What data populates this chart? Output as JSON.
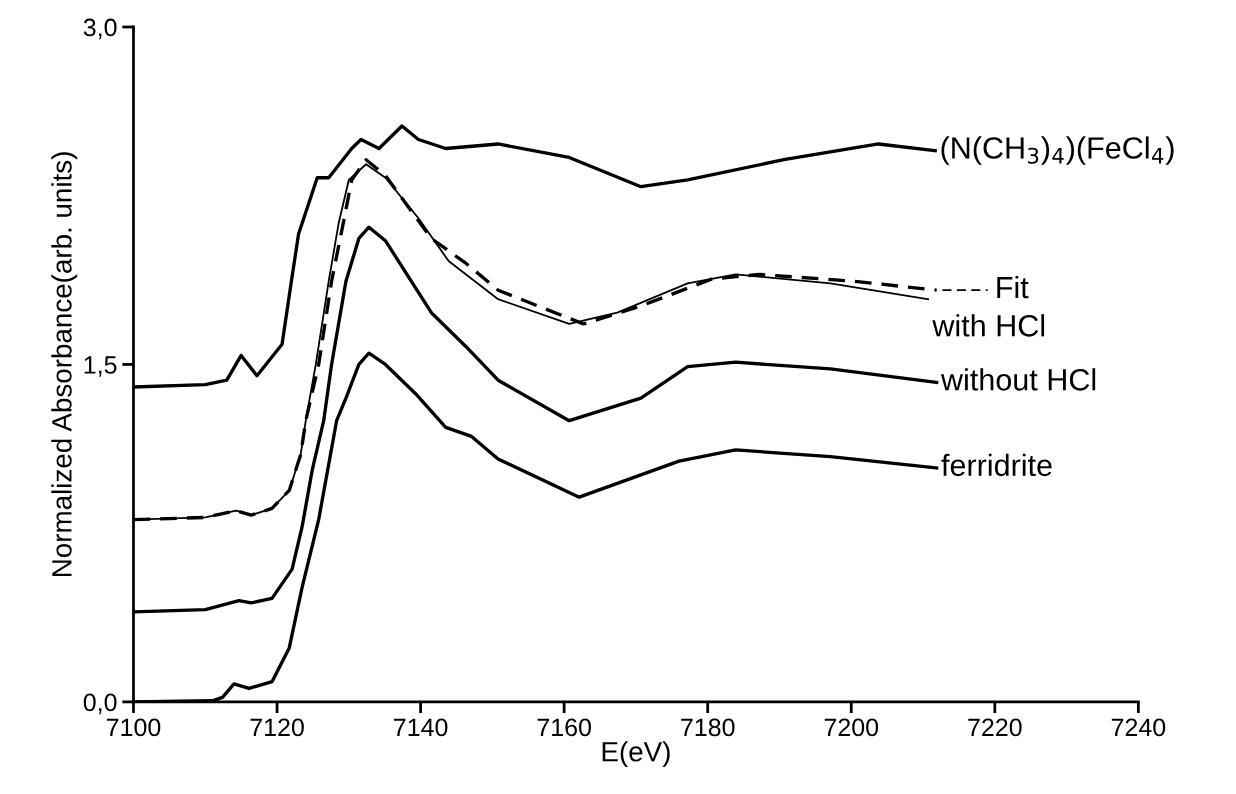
{
  "chart_data": {
    "type": "line",
    "xlabel": "E(eV)",
    "ylabel": "Normalized Absorbance(arb. units)",
    "xlim": [
      7100,
      7240
    ],
    "ylim": [
      0,
      3
    ],
    "xticks": [
      7100,
      7120,
      7140,
      7160,
      7180,
      7200,
      7220,
      7240
    ],
    "yticks": [
      {
        "value": 0,
        "label": "0,0"
      },
      {
        "value": 1.5,
        "label": "1,5"
      },
      {
        "value": 3,
        "label": "3,0"
      }
    ],
    "grid": false,
    "legend": "right",
    "marker": "none",
    "series": [
      {
        "name": "(N(CH$_{3}$)$_{4}$)(FeCl$_{4}$)",
        "color": "#000000",
        "line_style": "solid",
        "x": [
          7100,
          7110,
          7113,
          7115,
          7117.2,
          7120.7,
          7122,
          7123,
          7125.6,
          7127.2,
          7130.4,
          7131.7,
          7134.2,
          7137.4,
          7139.7,
          7143.5,
          7150.8,
          7160.7,
          7170.7,
          7177.2,
          7190.6,
          7203.8,
          7211.7
        ],
        "values": [
          1.4,
          1.41,
          1.43,
          1.54,
          1.45,
          1.59,
          1.87,
          2.08,
          2.33,
          2.33,
          2.46,
          2.5,
          2.46,
          2.56,
          2.5,
          2.46,
          2.48,
          2.42,
          2.29,
          2.32,
          2.41,
          2.48,
          2.45
        ]
      },
      {
        "name": "with HCl",
        "color": "#000000",
        "line_style": "solid",
        "x": [
          7100,
          7110,
          7114.3,
          7116.4,
          7119.3,
          7121.7,
          7123.3,
          7124,
          7125.4,
          7127.2,
          7128.6,
          7130,
          7132.4,
          7135.1,
          7139.7,
          7143.9,
          7150.8,
          7160.7,
          7167.4,
          7177.2,
          7183.9,
          7197.1,
          7210.7
        ],
        "values": [
          0.81,
          0.82,
          0.85,
          0.83,
          0.86,
          0.94,
          1.1,
          1.25,
          1.5,
          1.87,
          2.13,
          2.32,
          2.39,
          2.33,
          2.15,
          1.96,
          1.79,
          1.68,
          1.73,
          1.86,
          1.9,
          1.86,
          1.79
        ]
      },
      {
        "name": "Fit",
        "color": "#000000",
        "line_style": "dashed",
        "x": [
          7100,
          7110,
          7114.3,
          7116.4,
          7119.3,
          7121.7,
          7123.3,
          7124,
          7125.8,
          7127.6,
          7129.3,
          7130.4,
          7132.4,
          7135.1,
          7141.5,
          7146.3,
          7150.8,
          7162.7,
          7170.7,
          7180.6,
          7187.2,
          7200.4,
          7211.9
        ],
        "values": [
          0.81,
          0.82,
          0.85,
          0.83,
          0.86,
          0.94,
          1.1,
          1.25,
          1.5,
          1.87,
          2.14,
          2.32,
          2.41,
          2.34,
          2.06,
          1.95,
          1.83,
          1.68,
          1.76,
          1.88,
          1.9,
          1.87,
          1.83
        ]
      },
      {
        "name": "without HCl",
        "color": "#000000",
        "line_style": "solid",
        "x": [
          7100,
          7110,
          7114.7,
          7116.4,
          7119.3,
          7122.1,
          7123.5,
          7124.9,
          7126.5,
          7127.6,
          7129.6,
          7131.4,
          7132.8,
          7135.1,
          7141.5,
          7146.3,
          7150.8,
          7160.7,
          7170.7,
          7177.2,
          7183.9,
          7197.1,
          7211.9
        ],
        "values": [
          0.4,
          0.41,
          0.45,
          0.44,
          0.46,
          0.59,
          0.78,
          1.03,
          1.25,
          1.5,
          1.87,
          2.06,
          2.11,
          2.05,
          1.73,
          1.58,
          1.43,
          1.25,
          1.35,
          1.49,
          1.51,
          1.48,
          1.42
        ]
      },
      {
        "name": "ferridrite",
        "color": "#000000",
        "line_style": "solid",
        "x": [
          7100,
          7111,
          7112.4,
          7114,
          7116.1,
          7119.3,
          7121.7,
          7123.5,
          7125.8,
          7128.3,
          7129.6,
          7131.4,
          7132.8,
          7135.1,
          7139.3,
          7143.5,
          7147.1,
          7150.8,
          7162.1,
          7176,
          7183.9,
          7197.1,
          7211.9
        ],
        "values": [
          0,
          0.005,
          0.02,
          0.08,
          0.06,
          0.09,
          0.24,
          0.51,
          0.81,
          1.25,
          1.35,
          1.5,
          1.55,
          1.5,
          1.37,
          1.22,
          1.18,
          1.08,
          0.91,
          1.07,
          1.12,
          1.09,
          1.04
        ]
      }
    ]
  }
}
